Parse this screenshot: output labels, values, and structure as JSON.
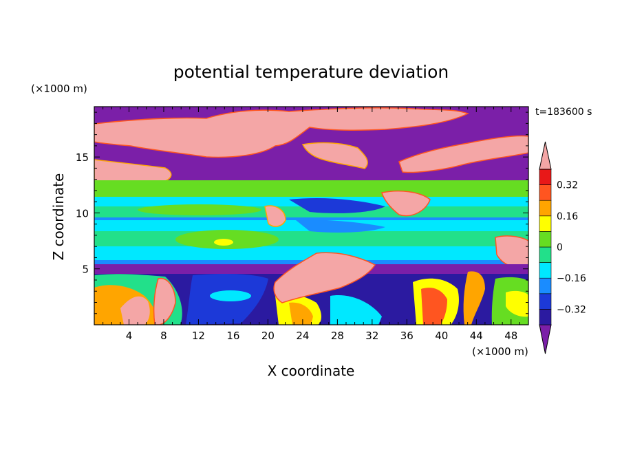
{
  "chart_data": {
    "type": "heatmap",
    "title": "potential temperature deviation",
    "xlabel": "X coordinate",
    "ylabel": "Z coordinate",
    "x_unit": "(×1000 m)",
    "y_unit": "(×1000 m)",
    "time_label": "t=183600 s",
    "xlim": [
      0,
      50
    ],
    "ylim": [
      0,
      19.5
    ],
    "x_ticks": [
      4,
      8,
      12,
      16,
      20,
      24,
      28,
      32,
      36,
      40,
      44,
      48
    ],
    "y_ticks": [
      5,
      10,
      15
    ],
    "colorbar": {
      "levels": [
        -0.4,
        -0.32,
        -0.24,
        -0.16,
        -0.08,
        0,
        0.08,
        0.16,
        0.24,
        0.32,
        0.4
      ],
      "labeled_ticks": [
        0.32,
        0.16,
        0,
        -0.16,
        -0.32
      ],
      "tick_labels": [
        "0.32",
        "0.16",
        "0",
        "−0.16",
        "−0.32"
      ],
      "colors": [
        "#7b1fa8",
        "#2b1aa0",
        "#1c39d8",
        "#1a8cff",
        "#00e8ff",
        "#22e08a",
        "#66dd22",
        "#ffff00",
        "#ffa500",
        "#ff5520",
        "#e81818",
        "#f4a6a6"
      ],
      "extend": "both"
    },
    "layers": [
      {
        "z": [
          0.0,
          4.8
        ],
        "description_value": "mixed",
        "values": [
          0.24,
          -0.24,
          -0.08,
          0.16
        ]
      },
      {
        "z": [
          4.8,
          5.8
        ],
        "values": [
          -0.4
        ]
      },
      {
        "z": [
          5.8,
          13.5
        ],
        "values": [
          -0.08,
          -0.16,
          0.0,
          -0.24
        ]
      },
      {
        "z": [
          13.5,
          19.5
        ],
        "values": [
          -0.4,
          0.4
        ]
      }
    ]
  }
}
